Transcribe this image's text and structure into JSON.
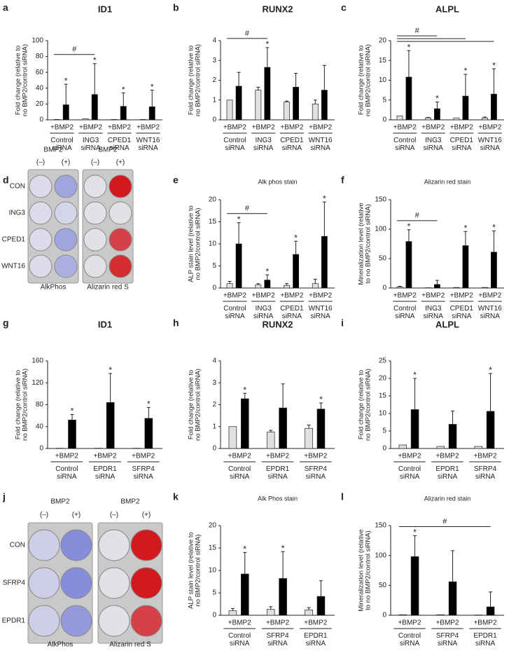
{
  "chart_data": [
    {
      "panel": "a",
      "type": "bar",
      "title": "ID1",
      "ylabel": [
        "Fold change (relative to",
        "no BMP2/control siRNA)"
      ],
      "categories": [
        "Control siRNA",
        "ING3 siRNA",
        "CPED1 siRNA",
        "WNT16 siRNA"
      ],
      "treatment_labels": [
        "+BMP2",
        "+BMP2",
        "+BMP2",
        "+BMP2"
      ],
      "ylim": [
        0,
        100
      ],
      "yticks": [
        0,
        20,
        40,
        60,
        80,
        100
      ],
      "series": [
        {
          "color": "#e0e0e0",
          "values": [
            0.5,
            1.5,
            0.5,
            0.5
          ],
          "errors": [
            null,
            null,
            null,
            null
          ]
        },
        {
          "color": "#000000",
          "values": [
            19,
            32,
            17,
            16.5
          ],
          "errors": [
            26,
            39,
            17,
            21
          ],
          "annotations": [
            "*",
            "*",
            "*",
            "*"
          ]
        }
      ],
      "brackets": [
        {
          "label": "#",
          "groups": [
            0,
            1
          ]
        }
      ]
    },
    {
      "panel": "b",
      "type": "bar",
      "title": "RUNX2",
      "ylabel": [
        "Fold change (relative to",
        "no BMP2/control siRNA)"
      ],
      "categories": [
        "Control siRNA",
        "ING3 siRNA",
        "CPED1 siRNA",
        "WNT16 siRNA"
      ],
      "treatment_labels": [
        "+BMP2",
        "+BMP2",
        "+BMP2",
        "+BMP2"
      ],
      "ylim": [
        0,
        4
      ],
      "yticks": [
        0,
        1,
        2,
        3,
        4
      ],
      "series": [
        {
          "color": "#e0e0e0",
          "values": [
            1.0,
            1.5,
            0.9,
            0.8
          ],
          "errors": [
            null,
            0.15,
            0.05,
            0.2
          ]
        },
        {
          "color": "#000000",
          "values": [
            1.7,
            2.65,
            1.65,
            1.5
          ],
          "errors": [
            0.7,
            1.0,
            0.7,
            1.25
          ],
          "annotations": [
            null,
            "*",
            null,
            null
          ]
        }
      ],
      "brackets": [
        {
          "label": "#",
          "groups": [
            0,
            1
          ]
        }
      ]
    },
    {
      "panel": "c",
      "type": "bar",
      "title": "ALPL",
      "ylabel": [
        "Fold change (relative to",
        "no BMP2/control siRNA)"
      ],
      "categories": [
        "Control siRNA",
        "ING3 siRNA",
        "CPED1 siRNA",
        "WNT16 siRNA"
      ],
      "treatment_labels": [
        "+BMP2",
        "+BMP2",
        "+BMP2",
        "+BMP2"
      ],
      "ylim": [
        0,
        20
      ],
      "yticks": [
        0,
        5,
        10,
        15,
        20
      ],
      "series": [
        {
          "color": "#e0e0e0",
          "values": [
            1.0,
            0.5,
            0.5,
            0.5
          ],
          "errors": [
            null,
            0.1,
            null,
            0.2
          ]
        },
        {
          "color": "#000000",
          "values": [
            10.8,
            2.8,
            6.0,
            6.5
          ],
          "errors": [
            6.7,
            1.7,
            5.5,
            6.4
          ],
          "annotations": [
            "*",
            "*",
            "*",
            "*"
          ]
        }
      ],
      "brackets": [
        {
          "label": "#",
          "groups": [
            0,
            1
          ]
        },
        {
          "groups": [
            0,
            2
          ]
        },
        {
          "groups": [
            0,
            3
          ]
        }
      ]
    },
    {
      "panel": "e",
      "type": "bar",
      "title": "Alk phos stain",
      "ylabel": [
        "ALP stain level (relative to",
        "no BMP2/control siRNA)"
      ],
      "categories": [
        "Control siRNA",
        "ING3 siRNA",
        "CPED1 siRNA",
        "WNT16 siRNA"
      ],
      "treatment_labels": [
        "+BMP2",
        "+BMP2",
        "+BMP2",
        "+BMP2"
      ],
      "ylim": [
        0,
        20
      ],
      "yticks": [
        0,
        5,
        10,
        15,
        20
      ],
      "series": [
        {
          "color": "#e0e0e0",
          "values": [
            1.0,
            0.7,
            0.6,
            1.0
          ],
          "errors": [
            0.5,
            0.3,
            0.4,
            1.0
          ]
        },
        {
          "color": "#000000",
          "values": [
            10,
            1.8,
            7.6,
            11.7
          ],
          "errors": [
            4.8,
            1.2,
            3.0,
            7.8
          ],
          "annotations": [
            "*",
            "*",
            "*",
            "*"
          ]
        }
      ],
      "brackets": [
        {
          "label": "#",
          "groups": [
            0,
            1
          ]
        }
      ]
    },
    {
      "panel": "f",
      "type": "bar",
      "title": "Alizarin red stain",
      "ylabel": [
        "Mineralization level (relative",
        "to no BMP2/control siRNA)"
      ],
      "categories": [
        "Control siRNA",
        "ING3 siRNA",
        "CPED1 siRNA",
        "WNT16 siRNA"
      ],
      "treatment_labels": [
        "+BMP2",
        "+BMP2",
        "+BMP2",
        "+BMP2"
      ],
      "ylim": [
        0,
        150
      ],
      "yticks": [
        0,
        50,
        100,
        150
      ],
      "series": [
        {
          "color": "#e0e0e0",
          "values": [
            2,
            0.5,
            1,
            1
          ],
          "errors": [
            1,
            null,
            null,
            null
          ]
        },
        {
          "color": "#000000",
          "values": [
            79,
            6,
            72,
            61
          ],
          "errors": [
            20,
            7,
            24,
            36
          ],
          "annotations": [
            "*",
            null,
            "*",
            "*"
          ]
        }
      ],
      "brackets": [
        {
          "label": "#",
          "groups": [
            0,
            1
          ]
        }
      ]
    },
    {
      "panel": "g",
      "type": "bar",
      "title": "ID1",
      "ylabel": [
        "Fold change (relative to",
        "no BMP2/control siRNA)"
      ],
      "categories": [
        "Control siRNA",
        "EPDR1 siRNA",
        "SFRP4 siRNA"
      ],
      "treatment_labels": [
        "+BMP2",
        "+BMP2",
        "+BMP2"
      ],
      "ylim": [
        0,
        160
      ],
      "yticks": [
        0,
        40,
        80,
        120,
        160
      ],
      "series": [
        {
          "color": "#e0e0e0",
          "values": [
            0.5,
            0.5,
            0.5
          ],
          "errors": [
            null,
            null,
            null
          ]
        },
        {
          "color": "#000000",
          "values": [
            52,
            84,
            55
          ],
          "errors": [
            10,
            53,
            20
          ],
          "annotations": [
            "*",
            "*",
            "*"
          ]
        }
      ]
    },
    {
      "panel": "h",
      "type": "bar",
      "title": "RUNX2",
      "ylabel": [
        "Fold change (relative to",
        "no BMP2/control siRNA)"
      ],
      "categories": [
        "Control siRNA",
        "EPDR1 siRNA",
        "SFRP4 siRNA"
      ],
      "treatment_labels": [
        "+BMP2",
        "+BMP2",
        "+BMP2"
      ],
      "ylim": [
        0,
        4
      ],
      "yticks": [
        0,
        1,
        2,
        3,
        4
      ],
      "series": [
        {
          "color": "#e0e0e0",
          "values": [
            1.0,
            0.75,
            0.92
          ],
          "errors": [
            null,
            0.08,
            0.15
          ]
        },
        {
          "color": "#000000",
          "values": [
            2.27,
            1.85,
            1.8
          ],
          "errors": [
            0.25,
            1.1,
            0.28
          ],
          "annotations": [
            "*",
            null,
            "*"
          ]
        }
      ]
    },
    {
      "panel": "i",
      "type": "bar",
      "title": "ALPL",
      "ylabel": [
        "Fold change (relative to",
        "no BMP2/control siRNA)"
      ],
      "categories": [
        "Control siRNA",
        "EPDR1 siRNA",
        "SFRP4 siRNA"
      ],
      "treatment_labels": [
        "+BMP2",
        "+BMP2",
        "+BMP2"
      ],
      "ylim": [
        0,
        25
      ],
      "yticks": [
        0,
        5,
        10,
        15,
        20,
        25
      ],
      "series": [
        {
          "color": "#e0e0e0",
          "values": [
            1.0,
            0.6,
            0.6
          ],
          "errors": [
            null,
            null,
            null
          ]
        },
        {
          "color": "#000000",
          "values": [
            11.1,
            6.9,
            10.6
          ],
          "errors": [
            8.9,
            3.8,
            10.8
          ],
          "annotations": [
            "*",
            null,
            "*"
          ]
        }
      ]
    },
    {
      "panel": "k",
      "type": "bar",
      "title": "Alk Phos stain",
      "ylabel": [
        "ALP stain level (relative to",
        "no BMP2/control siRNA)"
      ],
      "categories": [
        "Control siRNA",
        "SFRP4 siRNA",
        "EPDR1 siRNA"
      ],
      "treatment_labels": [
        "+BMP2",
        "+BMP2",
        "+BMP2"
      ],
      "ylim": [
        0,
        20
      ],
      "yticks": [
        0,
        5,
        10,
        15,
        20
      ],
      "series": [
        {
          "color": "#e0e0e0",
          "values": [
            1.0,
            1.3,
            1.2
          ],
          "errors": [
            0.5,
            0.6,
            0.5
          ]
        },
        {
          "color": "#000000",
          "values": [
            9.2,
            8.2,
            4.2
          ],
          "errors": [
            4.8,
            6.0,
            3.5
          ],
          "annotations": [
            "*",
            "*",
            null
          ]
        }
      ]
    },
    {
      "panel": "l",
      "type": "bar",
      "title": "Alizarin red stain",
      "ylabel": [
        "Mineralization level (relative",
        "to no BMP2/control siRNA)"
      ],
      "categories": [
        "Control siRNA",
        "SFRP4 siRNA",
        "EPDR1 siRNA"
      ],
      "treatment_labels": [
        "+BMP2",
        "+BMP2",
        "+BMP2"
      ],
      "ylim": [
        0,
        150
      ],
      "yticks": [
        0,
        50,
        100,
        150
      ],
      "series": [
        {
          "color": "#e0e0e0",
          "values": [
            1,
            1,
            0.5
          ],
          "errors": [
            null,
            null,
            null
          ]
        },
        {
          "color": "#000000",
          "values": [
            98,
            56,
            14
          ],
          "errors": [
            35,
            52,
            25
          ],
          "annotations": [
            "*",
            null,
            null
          ]
        }
      ],
      "brackets": [
        {
          "label": "#",
          "groups": [
            0,
            2
          ]
        }
      ]
    }
  ],
  "images": [
    {
      "panel": "d",
      "row_labels": [
        "CON",
        "ING3",
        "CPED1",
        "WNT16"
      ],
      "plates": [
        {
          "header": "BMP2",
          "columns": [
            "(–)",
            "(+)"
          ],
          "caption": "AlkPhos"
        },
        {
          "header": "BMP2",
          "columns": [
            "(–)",
            "(+)"
          ],
          "caption": "Alizarin red S"
        }
      ]
    },
    {
      "panel": "j",
      "row_labels": [
        "CON",
        "SFRP4",
        "EPDR1"
      ],
      "plates": [
        {
          "header": "BMP2",
          "columns": [
            "(–)",
            "(+)"
          ],
          "caption": "AlkPhos"
        },
        {
          "header": "BMP2",
          "columns": [
            "(–)",
            "(+)"
          ],
          "caption": "Alizarin red S"
        }
      ]
    }
  ]
}
